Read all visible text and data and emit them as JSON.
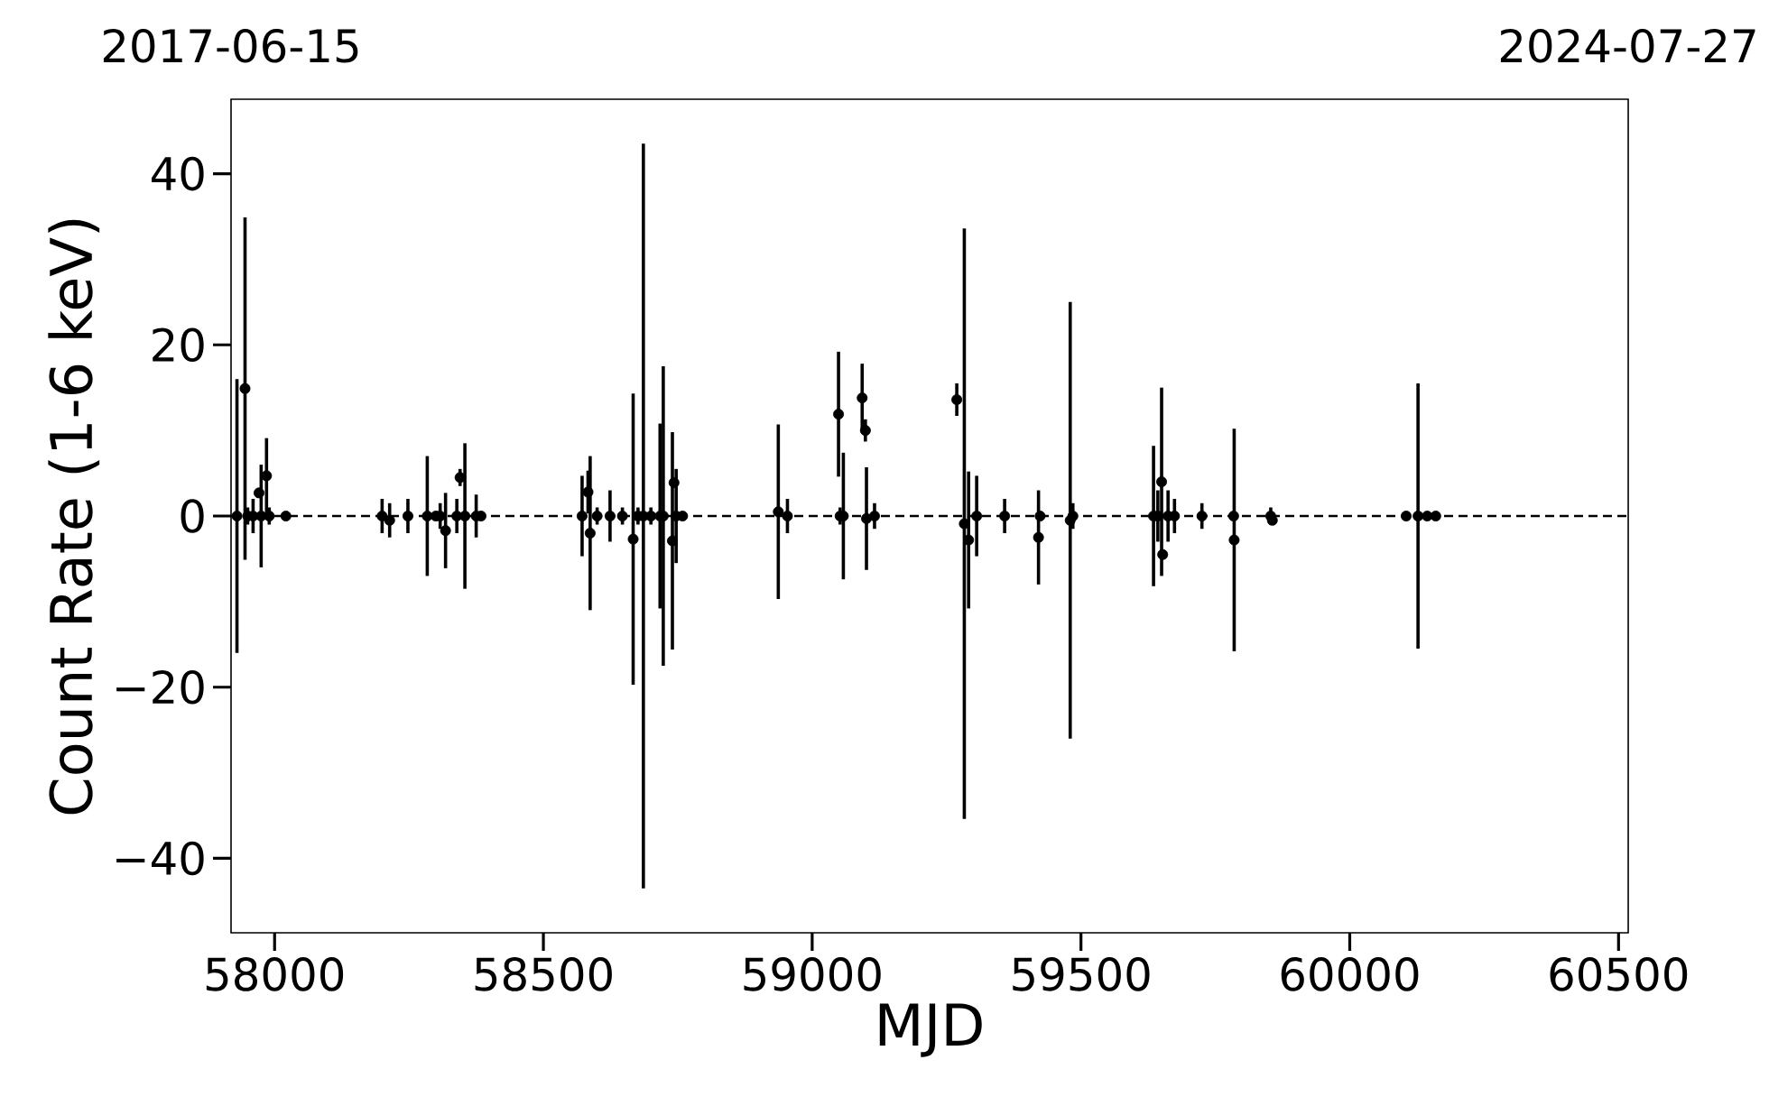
{
  "chart_data": {
    "type": "scatter",
    "xlabel": "MJD",
    "ylabel": "Count Rate (1-6 keV)",
    "xlim": [
      57919,
      60518
    ],
    "ylim": [
      -48.7,
      48.7
    ],
    "xticks": [
      58000,
      58500,
      59000,
      59500,
      60000,
      60500
    ],
    "yticks": [
      {
        "value": -40,
        "label": "−40"
      },
      {
        "value": -20,
        "label": "−20"
      },
      0,
      20,
      40
    ],
    "annotations": [
      "2017-06-15",
      "2024-07-27"
    ],
    "ref_lines": [
      {
        "axis": "y",
        "value": 0,
        "color": "#000000",
        "line_style": "dashed"
      }
    ],
    "series": [
      {
        "color": "#000000",
        "x": [
          57930,
          57945,
          57950,
          57960,
          57971,
          57975,
          57985,
          57990,
          58021,
          58200,
          58214,
          58248,
          58284,
          58300,
          58308,
          58318,
          58339,
          58345,
          58354,
          58375,
          58384,
          58572,
          58583,
          58587,
          58600,
          58624,
          58647,
          58667,
          58676,
          58686,
          58700,
          58717,
          58723,
          58740,
          58743,
          58747,
          58759,
          58937,
          58954,
          59049,
          59052,
          59058,
          59093,
          59099,
          59101,
          59116,
          59269,
          59283,
          59291,
          59306,
          59358,
          59421,
          59424,
          59480,
          59485,
          59635,
          59643,
          59650,
          59652,
          59662,
          59674,
          59725,
          59784,
          59785,
          59853,
          59856,
          60105,
          60127,
          60144,
          60160
        ],
        "values": [
          0,
          14.9,
          0,
          0,
          2.7,
          0,
          4.7,
          0,
          0,
          0,
          -0.5,
          0,
          0,
          0,
          0,
          -1.7,
          0,
          4.5,
          0,
          0,
          0,
          0,
          2.8,
          -2,
          0,
          0,
          0,
          -2.7,
          0,
          0,
          0,
          0,
          0,
          -2.9,
          3.9,
          0,
          0,
          0.5,
          0,
          11.9,
          0,
          0,
          13.8,
          10.0,
          -0.3,
          0,
          13.6,
          -0.9,
          -2.8,
          0,
          0,
          -2.5,
          0,
          -0.5,
          0,
          0,
          0,
          4,
          -4.5,
          0,
          0,
          0,
          0,
          -2.8,
          0,
          -0.5,
          0,
          0,
          0,
          0
        ],
        "errors": [
          16,
          20,
          1,
          2,
          null,
          6,
          4.4,
          1,
          null,
          2,
          2,
          2,
          7,
          0.5,
          1.5,
          4.4,
          2,
          1,
          8.5,
          2.5,
          0.5,
          4.7,
          2.5,
          9,
          1,
          3,
          1,
          17,
          1,
          43.5,
          1,
          10.8,
          17.5,
          12.7,
          null,
          5.5,
          0.5,
          10.2,
          2,
          7.3,
          1,
          7.4,
          4,
          1.3,
          6,
          1.5,
          1.9,
          34.5,
          8,
          4.7,
          2,
          5.5,
          null,
          25.5,
          1.5,
          8.2,
          3,
          11,
          null,
          3,
          2,
          1.5,
          null,
          13,
          1,
          null,
          null,
          15.5,
          null,
          null
        ]
      }
    ]
  }
}
